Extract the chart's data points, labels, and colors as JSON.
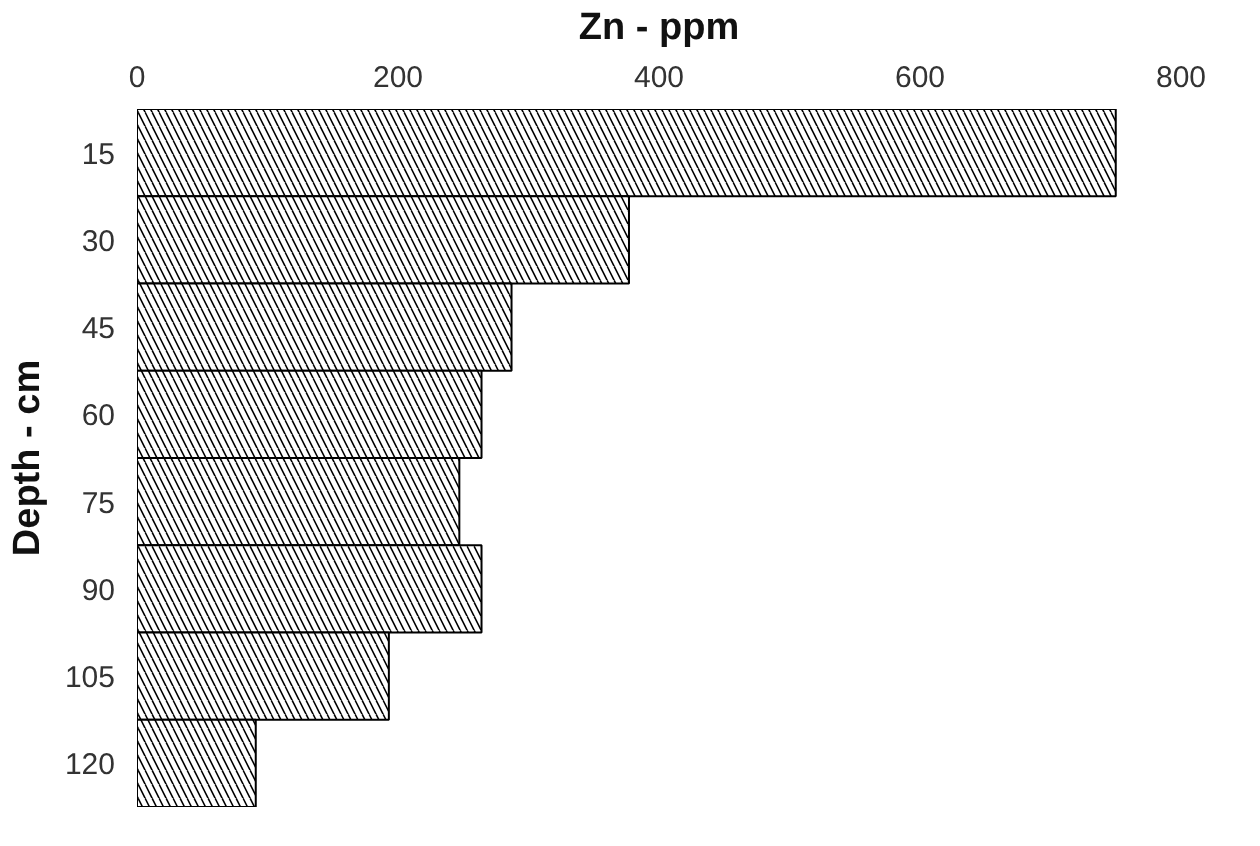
{
  "chart_data": {
    "type": "bar",
    "orientation": "horizontal",
    "xlabel": "Zn - ppm",
    "ylabel": "Depth - cm",
    "categories": [
      "15",
      "30",
      "45",
      "60",
      "75",
      "90",
      "105",
      "120"
    ],
    "values": [
      750,
      377,
      287,
      264,
      247,
      264,
      193,
      91
    ],
    "color": "#000000",
    "xlim": [
      0,
      800
    ],
    "xticks": [
      0,
      200,
      400,
      600,
      800
    ],
    "grid": false
  }
}
